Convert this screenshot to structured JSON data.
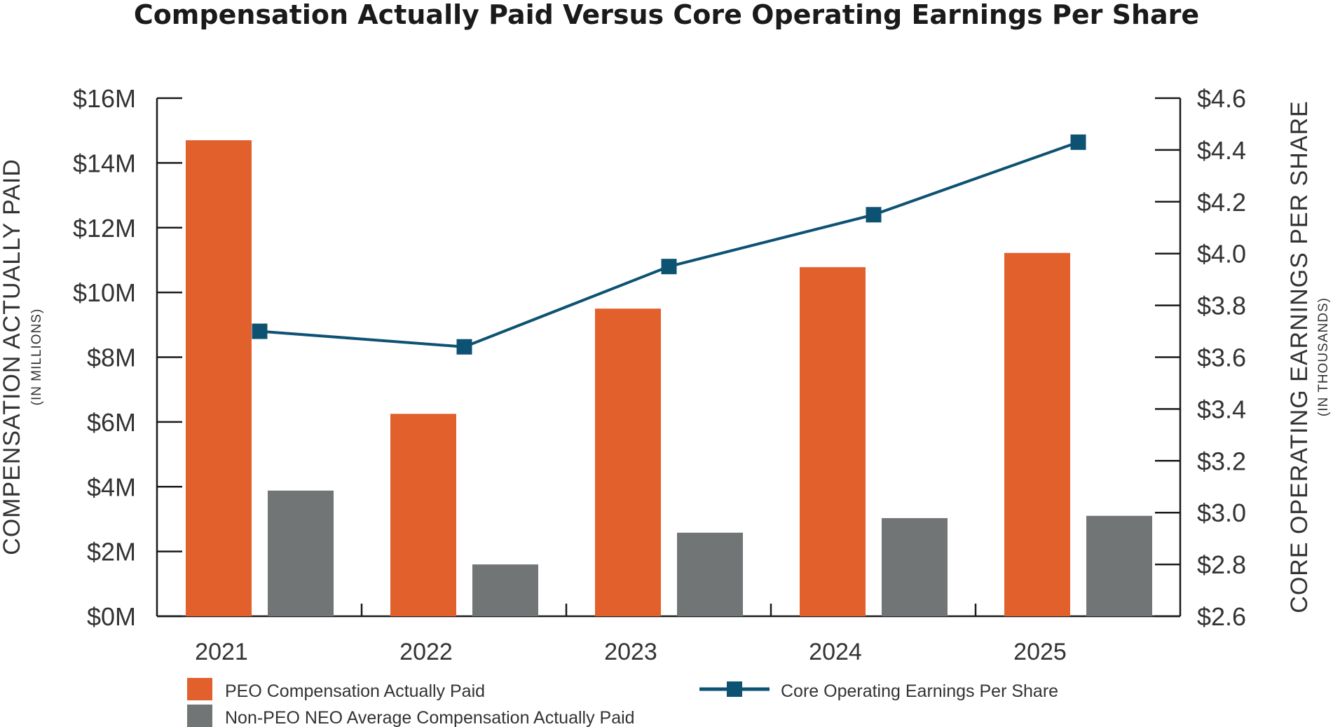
{
  "chart_data": {
    "type": "bar+line",
    "title": "Compensation Actually Paid Versus Core Operating Earnings Per Share",
    "categories": [
      "2021",
      "2022",
      "2023",
      "2024",
      "2025"
    ],
    "series": [
      {
        "name": "PEO Compensation Actually Paid",
        "type": "bar",
        "axis": "left",
        "color": "#E2602C",
        "values": [
          14.7,
          6.25,
          9.5,
          10.78,
          11.22
        ]
      },
      {
        "name": "Non-PEO NEO Average Compensation Actually Paid",
        "type": "bar",
        "axis": "left",
        "color": "#727576",
        "values": [
          3.88,
          1.6,
          2.58,
          3.03,
          3.1
        ]
      },
      {
        "name": "Core Operating Earnings Per Share",
        "type": "line",
        "axis": "right",
        "color": "#0E5273",
        "values": [
          3.7,
          3.64,
          3.95,
          4.15,
          4.43
        ]
      }
    ],
    "left_axis": {
      "label": "COMPENSATION ACTUALLY PAID",
      "sublabel": "(IN MILLIONS)",
      "ylim": [
        0,
        16
      ],
      "ticks": [
        0,
        2,
        4,
        6,
        8,
        10,
        12,
        14,
        16
      ],
      "tick_labels": [
        "$0M",
        "$2M",
        "$4M",
        "$6M",
        "$8M",
        "$10M",
        "$12M",
        "$14M",
        "$16M"
      ]
    },
    "right_axis": {
      "label": "CORE OPERATING EARNINGS PER SHARE",
      "sublabel": "(IN THOUSANDS)",
      "ylim": [
        2.6,
        4.6
      ],
      "ticks": [
        2.6,
        2.8,
        3.0,
        3.2,
        3.4,
        3.6,
        3.8,
        4.0,
        4.2,
        4.4,
        4.6
      ],
      "tick_labels": [
        "$2.6",
        "$2.8",
        "$3.0",
        "$3.2",
        "$3.4",
        "$3.6",
        "$3.8",
        "$4.0",
        "$4.2",
        "$4.4",
        "$4.6"
      ]
    },
    "legend": [
      {
        "label": "PEO Compensation Actually Paid",
        "shape": "square",
        "color": "#E2602C"
      },
      {
        "label": "Non-PEO NEO Average Compensation Actually Paid",
        "shape": "square",
        "color": "#727576"
      },
      {
        "label": "Core Operating Earnings Per Share",
        "shape": "line-marker",
        "color": "#0E5273"
      }
    ],
    "legend_position": "bottom",
    "grid": false
  }
}
